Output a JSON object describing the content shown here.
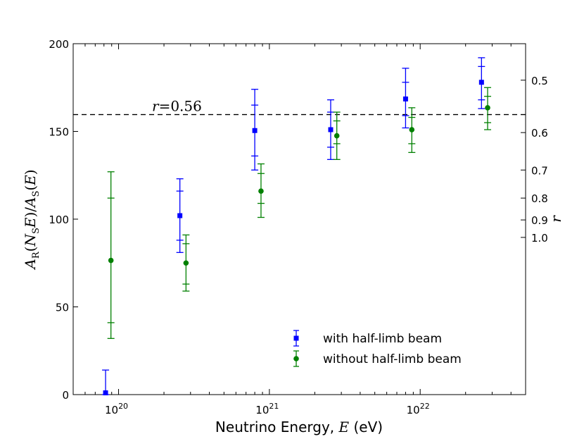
{
  "chart_data": {
    "type": "scatter",
    "title": "",
    "xlabel": "Neutrino Energy, E (eV)",
    "xlabel_prefix": "Neutrino Energy, ",
    "xlabel_var": "E",
    "xlabel_suffix": " (eV)",
    "ylabel": "A_R(N_S E)/A_S(E)",
    "ylabel_parts": {
      "A": "A",
      "R": "R",
      "N": "N",
      "S": "S",
      "E": "E",
      "lp": "(",
      "rp": ")",
      "slash": "/"
    },
    "y2label": "r",
    "x_scale": "log",
    "xlim": [
      5e+19,
      5e+22
    ],
    "ylim": [
      0,
      200
    ],
    "yticks": [
      0,
      50,
      100,
      150,
      200
    ],
    "xticks": [
      {
        "value": 1e+20,
        "base": "10",
        "exp": "20"
      },
      {
        "value": 1e+21,
        "base": "10",
        "exp": "21"
      },
      {
        "value": 1e+22,
        "base": "10",
        "exp": "22"
      }
    ],
    "y2_ref": 89.6,
    "y2ticks": [
      {
        "value": 0.5,
        "label": "0.5"
      },
      {
        "value": 0.6,
        "label": "0.6"
      },
      {
        "value": 0.7,
        "label": "0.7"
      },
      {
        "value": 0.8,
        "label": "0.8"
      },
      {
        "value": 0.9,
        "label": "0.9"
      },
      {
        "value": 1.0,
        "label": "1.0"
      }
    ],
    "hline": {
      "y": 159.6,
      "label_var": "r",
      "label_eq": "=",
      "label_value": "0.56"
    },
    "legend_position": "lower-right",
    "series": [
      {
        "name": "with half-limb beam",
        "color": "#0000ff",
        "marker": "square",
        "points": [
          {
            "x": 8.2e+19,
            "y": 1,
            "err_inner": [
              0,
              0
            ],
            "err_outer": [
              0,
              14
            ]
          },
          {
            "x": 2.55e+20,
            "y": 102,
            "err_inner": [
              88,
              116
            ],
            "err_outer": [
              81,
              123
            ]
          },
          {
            "x": 8e+20,
            "y": 150.5,
            "err_inner": [
              136,
              165
            ],
            "err_outer": [
              128,
              174
            ]
          },
          {
            "x": 2.55e+21,
            "y": 151,
            "err_inner": [
              141,
              161
            ],
            "err_outer": [
              134,
              168
            ]
          },
          {
            "x": 8e+21,
            "y": 168.5,
            "err_inner": [
              159,
              178
            ],
            "err_outer": [
              152,
              186
            ]
          },
          {
            "x": 2.55e+22,
            "y": 178,
            "err_inner": [
              168,
              187
            ],
            "err_outer": [
              163,
              192
            ]
          }
        ]
      },
      {
        "name": "without half-limb beam",
        "color": "#008000",
        "marker": "circle",
        "points": [
          {
            "x": 8.9e+19,
            "y": 76.5,
            "err_inner": [
              41,
              112
            ],
            "err_outer": [
              32,
              127
            ]
          },
          {
            "x": 2.8e+20,
            "y": 75,
            "err_inner": [
              63,
              86
            ],
            "err_outer": [
              59,
              91
            ]
          },
          {
            "x": 8.8e+20,
            "y": 116,
            "err_inner": [
              109,
              126
            ],
            "err_outer": [
              101,
              131.5
            ]
          },
          {
            "x": 2.8e+21,
            "y": 147.5,
            "err_inner": [
              143,
              156
            ],
            "err_outer": [
              134,
              161
            ]
          },
          {
            "x": 8.8e+21,
            "y": 151,
            "err_inner": [
              143,
              158
            ],
            "err_outer": [
              138,
              163.5
            ]
          },
          {
            "x": 2.8e+22,
            "y": 163.5,
            "err_inner": [
              155,
              170
            ],
            "err_outer": [
              151,
              175
            ]
          }
        ]
      }
    ]
  }
}
